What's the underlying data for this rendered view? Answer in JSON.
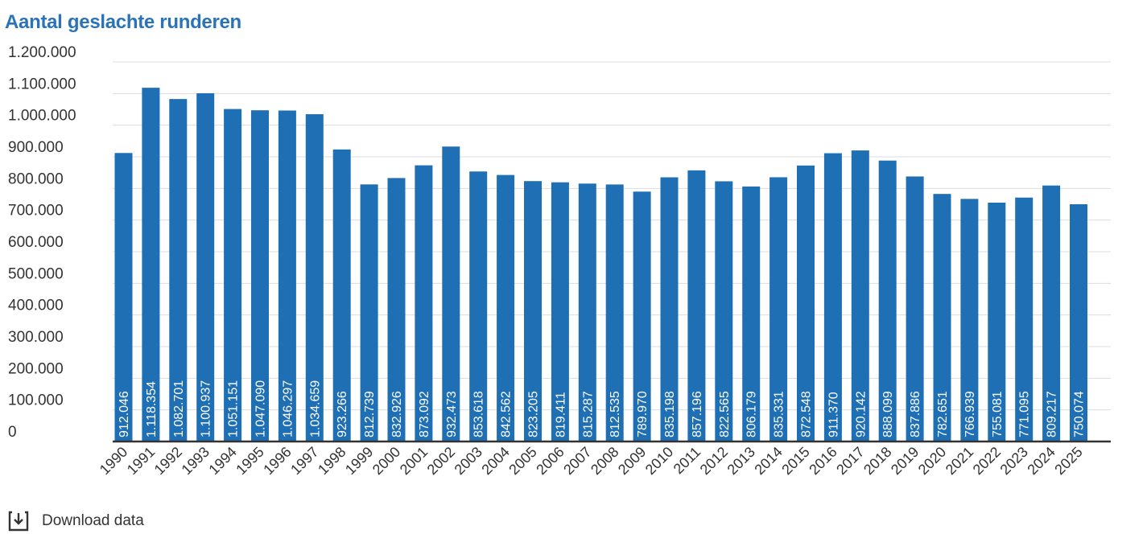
{
  "chart_data": {
    "type": "bar",
    "title": "Aantal geslachte runderen",
    "xlabel": "",
    "ylabel": "",
    "ylim": [
      0,
      1200000
    ],
    "yticks": [
      0,
      100000,
      200000,
      300000,
      400000,
      500000,
      600000,
      700000,
      800000,
      900000,
      1000000,
      1100000,
      1200000
    ],
    "ytick_labels": [
      "0",
      "100.000",
      "200.000",
      "300.000",
      "400.000",
      "500.000",
      "600.000",
      "700.000",
      "800.000",
      "900.000",
      "1.000.000",
      "1.100.000",
      "1.200.000"
    ],
    "grid": true,
    "categories": [
      "1990",
      "1991",
      "1992",
      "1993",
      "1994",
      "1995",
      "1996",
      "1997",
      "1998",
      "1999",
      "2000",
      "2001",
      "2002",
      "2003",
      "2004",
      "2005",
      "2006",
      "2007",
      "2008",
      "2009",
      "2010",
      "2011",
      "2012",
      "2013",
      "2014",
      "2015",
      "2016",
      "2017",
      "2018",
      "2019",
      "2020",
      "2021",
      "2022",
      "2023",
      "2024",
      "2025"
    ],
    "values": [
      912046,
      1118354,
      1082701,
      1100937,
      1051151,
      1047090,
      1046297,
      1034659,
      923266,
      812739,
      832926,
      873092,
      932473,
      853618,
      842562,
      823205,
      819411,
      815287,
      812535,
      789970,
      835198,
      857196,
      822565,
      806179,
      835331,
      872548,
      911370,
      920142,
      888099,
      837886,
      782651,
      766939,
      755081,
      771095,
      809217,
      750074
    ],
    "data_labels": [
      "912.046",
      "1.118.354",
      "1.082.701",
      "1.100.937",
      "1.051.151",
      "1.047.090",
      "1.046.297",
      "1.034.659",
      "923.266",
      "812.739",
      "832.926",
      "873.092",
      "932.473",
      "853.618",
      "842.562",
      "823.205",
      "819.411",
      "815.287",
      "812.535",
      "789.970",
      "835.198",
      "857.196",
      "822.565",
      "806.179",
      "835.331",
      "872.548",
      "911.370",
      "920.142",
      "888.099",
      "837.886",
      "782.651",
      "766.939",
      "755.081",
      "771.095",
      "809.217",
      "750.074"
    ],
    "colors": {
      "bar": "#1f6fb5",
      "title": "#2a73b9",
      "label": "#ffffff"
    }
  },
  "footer": {
    "download_label": "Download data",
    "download_icon": "download-icon"
  }
}
